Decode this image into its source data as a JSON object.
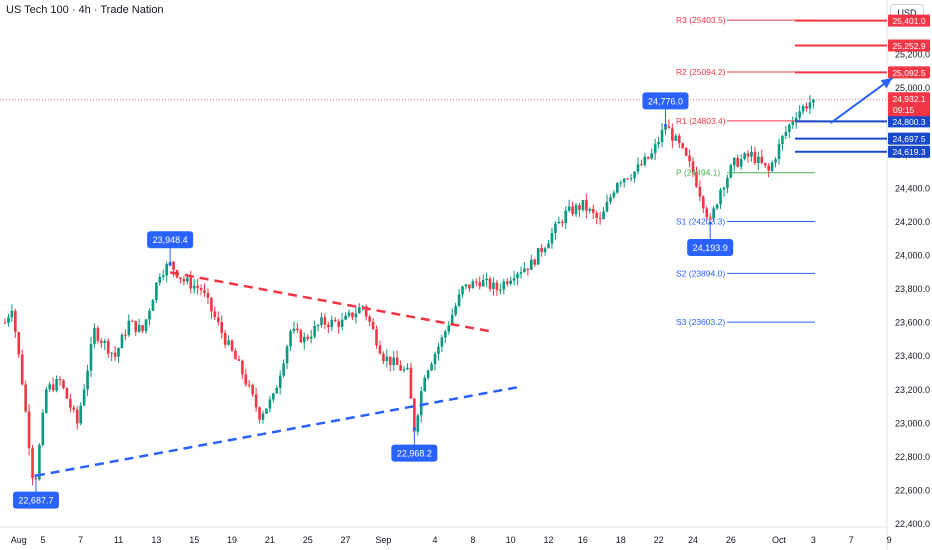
{
  "chart_data": {
    "type": "candlestick",
    "title": "US Tech 100 · 4h · Trade Nation",
    "currency": "USD",
    "ylim": [
      22340,
      25500
    ],
    "y_ticks": [
      22400,
      22600,
      22800,
      23000,
      23200,
      23400,
      23600,
      23800,
      24000,
      24200,
      24400,
      24600,
      25000,
      25200
    ],
    "y_tick_labels": [
      "22,400.0",
      "22,600.0",
      "22,800.0",
      "23,000.0",
      "23,200.0",
      "23,400.0",
      "23,600.0",
      "23,800.0",
      "24,000.0",
      "24,200.0",
      "24,400.0",
      "24,600.0",
      "25,000.0",
      "25,200.0"
    ],
    "x_ticks": [
      {
        "label": "Aug",
        "index": 4
      },
      {
        "label": "5",
        "index": 11
      },
      {
        "label": "7",
        "index": 22
      },
      {
        "label": "11",
        "index": 33
      },
      {
        "label": "13",
        "index": 44
      },
      {
        "label": "15",
        "index": 55
      },
      {
        "label": "19",
        "index": 66
      },
      {
        "label": "21",
        "index": 77
      },
      {
        "label": "25",
        "index": 88
      },
      {
        "label": "27",
        "index": 99
      },
      {
        "label": "Sep",
        "index": 110
      },
      {
        "label": "4",
        "index": 125
      },
      {
        "label": "8",
        "index": 136
      },
      {
        "label": "10",
        "index": 147
      },
      {
        "label": "12",
        "index": 158
      },
      {
        "label": "16",
        "index": 168
      },
      {
        "label": "18",
        "index": 179
      },
      {
        "label": "22",
        "index": 190
      },
      {
        "label": "24",
        "index": 200
      },
      {
        "label": "26",
        "index": 211
      },
      {
        "label": "Oct",
        "index": 225
      },
      {
        "label": "3",
        "index": 235
      },
      {
        "label": "7",
        "index": 246
      },
      {
        "label": "9",
        "index": 257
      }
    ],
    "anchors": [
      [
        0,
        23600
      ],
      [
        2,
        23700
      ],
      [
        5,
        23250
      ],
      [
        8,
        22700
      ],
      [
        9,
        22687.7
      ],
      [
        12,
        23200
      ],
      [
        16,
        23250
      ],
      [
        21,
        23000
      ],
      [
        26,
        23550
      ],
      [
        32,
        23400
      ],
      [
        36,
        23600
      ],
      [
        40,
        23550
      ],
      [
        45,
        23900
      ],
      [
        48,
        23948.4
      ],
      [
        52,
        23850
      ],
      [
        57,
        23800
      ],
      [
        64,
        23500
      ],
      [
        69,
        23300
      ],
      [
        74,
        23050
      ],
      [
        78,
        23150
      ],
      [
        83,
        23550
      ],
      [
        87,
        23500
      ],
      [
        92,
        23600
      ],
      [
        98,
        23600
      ],
      [
        104,
        23700
      ],
      [
        110,
        23400
      ],
      [
        117,
        23300
      ],
      [
        119,
        22968.2
      ],
      [
        122,
        23300
      ],
      [
        127,
        23500
      ],
      [
        133,
        23800
      ],
      [
        138,
        23850
      ],
      [
        143,
        23800
      ],
      [
        148,
        23900
      ],
      [
        153,
        23950
      ],
      [
        158,
        24100
      ],
      [
        163,
        24250
      ],
      [
        168,
        24300
      ],
      [
        173,
        24200
      ],
      [
        178,
        24450
      ],
      [
        183,
        24500
      ],
      [
        188,
        24600
      ],
      [
        192,
        24776
      ],
      [
        196,
        24650
      ],
      [
        200,
        24500
      ],
      [
        205,
        24193.9
      ],
      [
        208,
        24400
      ],
      [
        212,
        24550
      ],
      [
        217,
        24600
      ],
      [
        222,
        24500
      ],
      [
        226,
        24700
      ],
      [
        230,
        24850
      ],
      [
        235,
        24932.1
      ]
    ],
    "highlighted_values": [
      {
        "label": "24,776.0",
        "value": 24776,
        "index": 192,
        "side": "above"
      },
      {
        "label": "23,948.4",
        "value": 23948.4,
        "index": 48,
        "side": "above"
      },
      {
        "label": "24,193.9",
        "value": 24193.9,
        "index": 205,
        "side": "below"
      },
      {
        "label": "22,968.2",
        "value": 22968.2,
        "index": 119,
        "side": "below"
      },
      {
        "label": "22,687.7",
        "value": 22687.7,
        "index": 9,
        "side": "below"
      }
    ],
    "pivot_levels": [
      {
        "label": "R3 (25403.5)",
        "value": 25403.5,
        "color": "#f23645"
      },
      {
        "label": "R2 (25094.2)",
        "value": 25094.2,
        "color": "#f23645"
      },
      {
        "label": "R1 (24803.4)",
        "value": 24803.4,
        "color": "#f23645"
      },
      {
        "label": "P (24494.1)",
        "value": 24494.1,
        "color": "#4caf50"
      },
      {
        "label": "S1 (24203.3)",
        "value": 24203.3,
        "color": "#2962ff"
      },
      {
        "label": "S2 (23894.0)",
        "value": 23894.0,
        "color": "#2962ff"
      },
      {
        "label": "S3 (23603.2)",
        "value": 23603.2,
        "color": "#2962ff"
      }
    ],
    "price_tags": [
      {
        "label": "25,401.0",
        "value": 25401.0,
        "color": "#f23645",
        "line": true
      },
      {
        "label": "25,252.9",
        "value": 25252.9,
        "color": "#f23645",
        "line": true
      },
      {
        "label": "25,092.5",
        "value": 25092.5,
        "color": "#f23645",
        "line": true
      },
      {
        "label": "24,800.3",
        "value": 24800.3,
        "color": "#1848cc",
        "line": true
      },
      {
        "label": "24,697.5",
        "value": 24697.5,
        "color": "#1848cc",
        "line": true
      },
      {
        "label": "24,619.3",
        "value": 24619.3,
        "color": "#1848cc",
        "line": true
      }
    ],
    "last_price": {
      "label": "24,932.1",
      "countdown": "09:15",
      "value": 24932.1,
      "color": "#f23645"
    },
    "trendlines": [
      {
        "name": "resistance",
        "from": [
          48,
          23900
        ],
        "to": [
          142,
          23545
        ],
        "color": "#f23645"
      },
      {
        "name": "support",
        "from": [
          9,
          22687.7
        ],
        "to": [
          149,
          23215
        ],
        "color": "#2962ff"
      }
    ],
    "projection_arrow": {
      "from": [
        240,
        24790
      ],
      "to": [
        258,
        25060
      ],
      "color": "#2962ff"
    }
  }
}
